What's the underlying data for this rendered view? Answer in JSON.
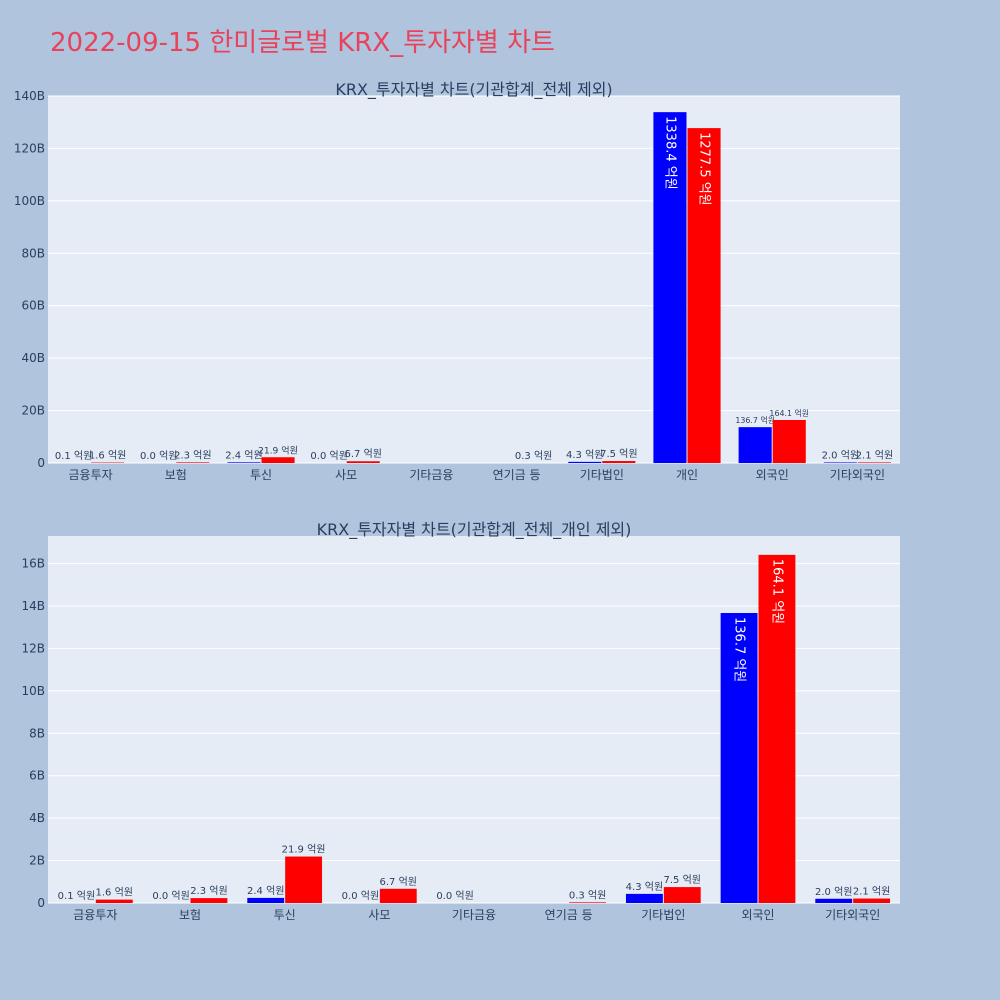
{
  "page_title": "2022-09-15 한미글로벌 KRX_투자자별 차트",
  "colors": {
    "background": "#b0c4de",
    "plot_bg": "#e5ecf6",
    "grid": "#ffffff",
    "title": "#e8435a",
    "series_a": "#0000ff",
    "series_b": "#ff0000"
  },
  "chart_data": [
    {
      "type": "bar",
      "title": "KRX_투자자별 차트(기관합계_전체 제외)",
      "xlabel": "",
      "ylabel": "",
      "categories": [
        "금융투자",
        "보험",
        "투신",
        "사모",
        "기타금융",
        "연기금 등",
        "기타법인",
        "개인",
        "외국인",
        "기타외국인"
      ],
      "ylim": [
        0,
        140
      ],
      "yticks": [
        0,
        20,
        40,
        60,
        80,
        100,
        120,
        140
      ],
      "ytick_labels": [
        "0",
        "20B",
        "40B",
        "60B",
        "80B",
        "100B",
        "120B",
        "140B"
      ],
      "grid": true,
      "series": [
        {
          "color": "#0000ff",
          "values": [
            0.01,
            0.0,
            0.24,
            0.0,
            null,
            null,
            0.43,
            133.84,
            13.67,
            0.2
          ],
          "labels": [
            "0.1 억원",
            "0.0 억원",
            "2.4 억원",
            "0.0 억원",
            "",
            "",
            "4.3 억원",
            "1338.4 억원",
            "136.7 억원",
            "2.0 억원"
          ]
        },
        {
          "color": "#ff0000",
          "values": [
            0.16,
            0.23,
            2.19,
            0.67,
            null,
            0.03,
            0.75,
            127.75,
            16.41,
            0.21
          ],
          "labels": [
            "1.6 억원",
            "2.3 억원",
            "21.9 억원",
            "6.7 억원",
            "",
            "0.3 억원",
            "7.5 억원",
            "1277.5 억원",
            "164.1 억원",
            "2.1 억원"
          ]
        }
      ]
    },
    {
      "type": "bar",
      "title": "KRX_투자자별 차트(기관합계_전체_개인 제외)",
      "xlabel": "",
      "ylabel": "",
      "categories": [
        "금융투자",
        "보험",
        "투신",
        "사모",
        "기타금융",
        "연기금 등",
        "기타법인",
        "외국인",
        "기타외국인"
      ],
      "ylim": [
        0,
        17.3
      ],
      "yticks": [
        0,
        2,
        4,
        6,
        8,
        10,
        12,
        14,
        16
      ],
      "ytick_labels": [
        "0",
        "2B",
        "4B",
        "6B",
        "8B",
        "10B",
        "12B",
        "14B",
        "16B"
      ],
      "grid": true,
      "series": [
        {
          "color": "#0000ff",
          "values": [
            0.01,
            0.0,
            0.24,
            0.0,
            0.0,
            null,
            0.43,
            13.67,
            0.2
          ],
          "labels": [
            "0.1 억원",
            "0.0 억원",
            "2.4 억원",
            "0.0 억원",
            "0.0 억원",
            "",
            "4.3 억원",
            "136.7 억원",
            "2.0 억원"
          ]
        },
        {
          "color": "#ff0000",
          "values": [
            0.16,
            0.23,
            2.19,
            0.67,
            null,
            0.03,
            0.75,
            16.41,
            0.21
          ],
          "labels": [
            "1.6 억원",
            "2.3 억원",
            "21.9 억원",
            "6.7 억원",
            "",
            "0.3 억원",
            "7.5 억원",
            "164.1 억원",
            "2.1 억원"
          ]
        }
      ]
    }
  ]
}
